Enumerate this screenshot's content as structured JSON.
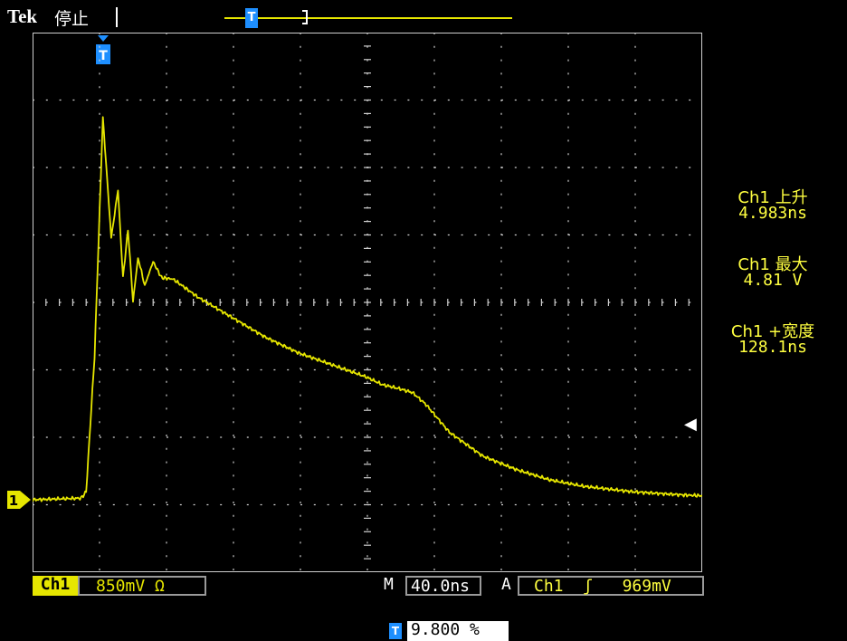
{
  "header": {
    "brand": "Tek",
    "status": "停止",
    "record_marker": "T"
  },
  "measurements": [
    {
      "label": "Ch1 上升",
      "value": "4.983ns"
    },
    {
      "label": "Ch1 最大",
      "value": "4.81 V"
    },
    {
      "label": "Ch1 +宽度",
      "value": "128.1ns"
    }
  ],
  "footer": {
    "channel": "Ch1",
    "vertical_scale": "850mV Ω",
    "time_prefix": "M",
    "time_scale": "40.0ns",
    "trigger_prefix": "A",
    "trigger_source": "Ch1",
    "trigger_slope": "ʃ",
    "trigger_level": "969mV",
    "trigger_pos_marker": "T",
    "trigger_pos_value": "9.800 %"
  },
  "markers": {
    "ch1_ground": "1",
    "trigger_pos": "T",
    "trigger_level_arrow": "◀"
  },
  "colors": {
    "background": "#000000",
    "trace": "#e6e600",
    "marker_blue": "#1e8fff",
    "grid": "#cfcfcf"
  },
  "waveform": {
    "type": "line",
    "x_unit": "ns",
    "y_unit": "V",
    "x_divisions": 10,
    "y_divisions": 8,
    "ns_per_div": 40.0,
    "v_per_div": 0.85,
    "t": [
      -39,
      -10,
      -7,
      -2,
      3,
      8,
      12,
      15,
      18,
      21,
      24,
      28,
      33,
      38,
      45,
      60,
      80,
      100,
      120,
      140,
      160,
      170,
      180,
      188,
      196,
      210,
      230,
      250,
      270,
      290,
      320,
      350,
      361
    ],
    "v": [
      0.0,
      0.02,
      0.1,
      1.8,
      4.81,
      3.3,
      3.9,
      2.8,
      3.4,
      2.5,
      3.05,
      2.7,
      3.0,
      2.8,
      2.78,
      2.55,
      2.3,
      2.05,
      1.85,
      1.7,
      1.55,
      1.45,
      1.4,
      1.35,
      1.2,
      0.85,
      0.55,
      0.38,
      0.25,
      0.17,
      0.1,
      0.06,
      0.05
    ]
  }
}
